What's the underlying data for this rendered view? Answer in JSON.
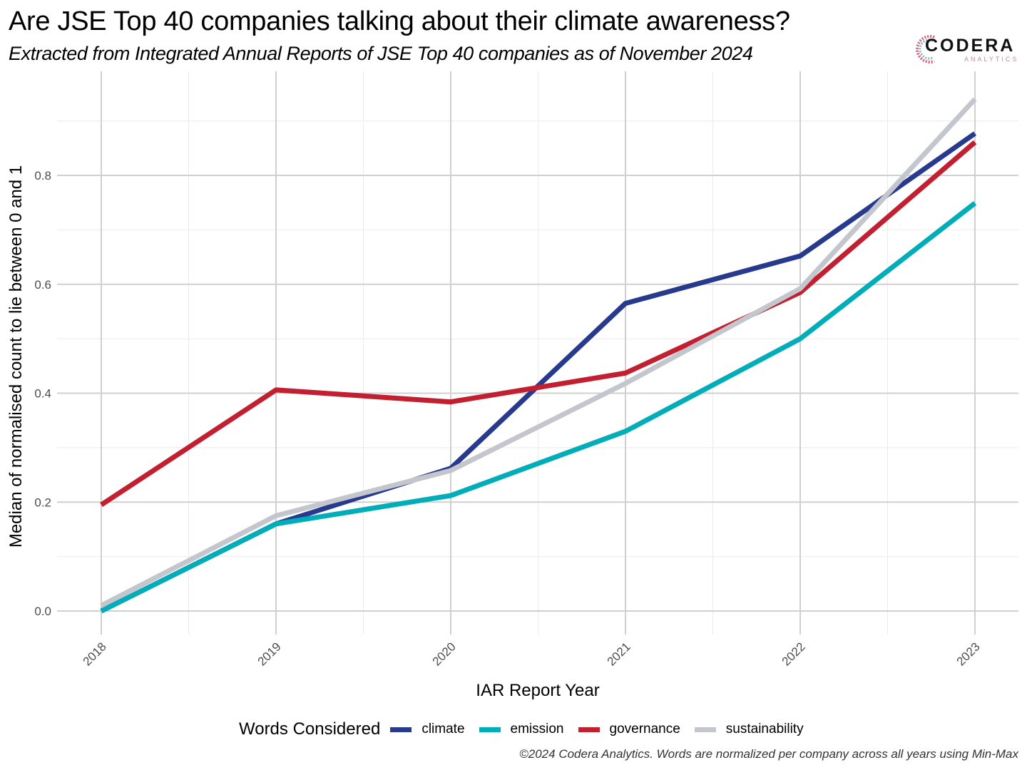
{
  "chart_data": {
    "type": "line",
    "title": "Are JSE Top 40 companies talking about their climate awareness?",
    "subtitle": "Extracted from Integrated Annual Reports of JSE Top 40 companies as of November 2024",
    "xlabel": "IAR Report Year",
    "ylabel": "Median of normalised count to lie between 0 and 1",
    "x": [
      "2018",
      "2019",
      "2020",
      "2021",
      "2022",
      "2023"
    ],
    "y_ticks": [
      "0.0",
      "0.2",
      "0.4",
      "0.6",
      "0.8"
    ],
    "y_tick_values": [
      0.0,
      0.2,
      0.4,
      0.6,
      0.8
    ],
    "ylim": [
      -0.043,
      0.99
    ],
    "grid": true,
    "legend_title": "Words Considered",
    "legend_position": "bottom",
    "series": [
      {
        "name": "climate",
        "color": "#283a8e",
        "values": [
          0.0,
          0.16,
          0.262,
          0.565,
          0.652,
          0.877
        ]
      },
      {
        "name": "emission",
        "color": "#00adb9",
        "values": [
          0.0,
          0.16,
          0.212,
          0.33,
          0.5,
          0.749
        ]
      },
      {
        "name": "governance",
        "color": "#c21f30",
        "values": [
          0.195,
          0.406,
          0.384,
          0.437,
          0.585,
          0.861
        ]
      },
      {
        "name": "sustainability",
        "color": "#c4c6cd",
        "values": [
          0.01,
          0.175,
          0.258,
          0.418,
          0.592,
          0.94
        ]
      }
    ],
    "caption": "©2024 Codera Analytics. Words are normalized per company across all years using Min-Max"
  },
  "logo": {
    "name": "CODERA",
    "sub": "ANALYTICS"
  }
}
